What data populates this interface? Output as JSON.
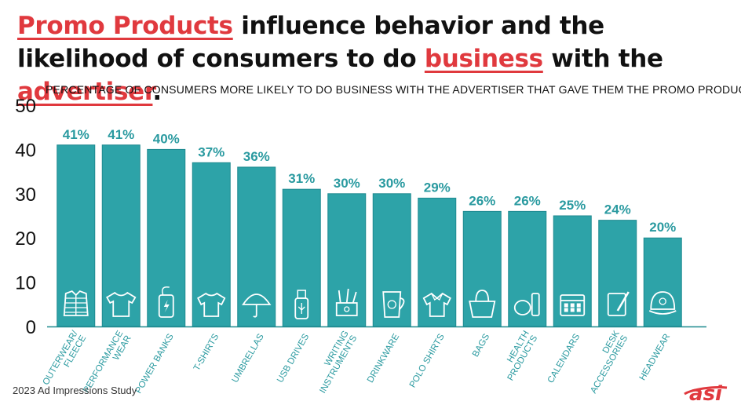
{
  "headline": {
    "part1": "Promo Products",
    "part2": " influence behavior and the likelihood of consumers to do ",
    "part3": "business",
    "part4": " with the ",
    "part5": "advertiser",
    "part6": "."
  },
  "footer": {
    "source": "2023 Ad Impressions Study"
  },
  "logo": {
    "text": "asi"
  },
  "colors": {
    "bar": "#2da3a8",
    "bar_edge": "#1f8a90",
    "label": "#2a9aa0",
    "accent": "#e0393e"
  },
  "chart_data": {
    "type": "bar",
    "title": "PERCENTAGE OF CONSUMERS MORE LIKELY TO DO BUSINESS WITH THE ADVERTISER THAT GAVE THEM THE PROMO PRODUCT",
    "categories": [
      "OUTERWEAR/ FLEECE",
      "PERFORMANCE WEAR",
      "POWER BANKS",
      "T-SHIRTS",
      "UMBRELLAS",
      "USB DRIVES",
      "WRITING INSTRUMENTS",
      "DRINKWARE",
      "POLO SHIRTS",
      "BAGS",
      "HEALTH PRODUCTS",
      "CALENDARS",
      "DESK ACCESSORIES",
      "HEADWEAR"
    ],
    "values": [
      41,
      41,
      40,
      37,
      36,
      31,
      30,
      30,
      29,
      26,
      26,
      25,
      24,
      20
    ],
    "data_labels": [
      "41%",
      "41%",
      "40%",
      "37%",
      "36%",
      "31%",
      "30%",
      "30%",
      "29%",
      "26%",
      "26%",
      "25%",
      "24%",
      "20%"
    ],
    "icons": [
      "jacket-icon",
      "performance-shirt-icon",
      "power-bank-icon",
      "t-shirt-icon",
      "umbrella-icon",
      "usb-drive-icon",
      "pen-cup-icon",
      "drinkware-cup-icon",
      "polo-shirt-icon",
      "bag-icon",
      "health-products-icon",
      "calendar-icon",
      "notepad-pen-icon",
      "cap-icon"
    ],
    "ylim": [
      0,
      50
    ],
    "yticks": [
      0,
      10,
      20,
      30,
      40,
      50
    ],
    "ytick_labels": [
      "0",
      "10",
      "20",
      "30",
      "40",
      "50"
    ],
    "grid": false,
    "legend": "none"
  }
}
